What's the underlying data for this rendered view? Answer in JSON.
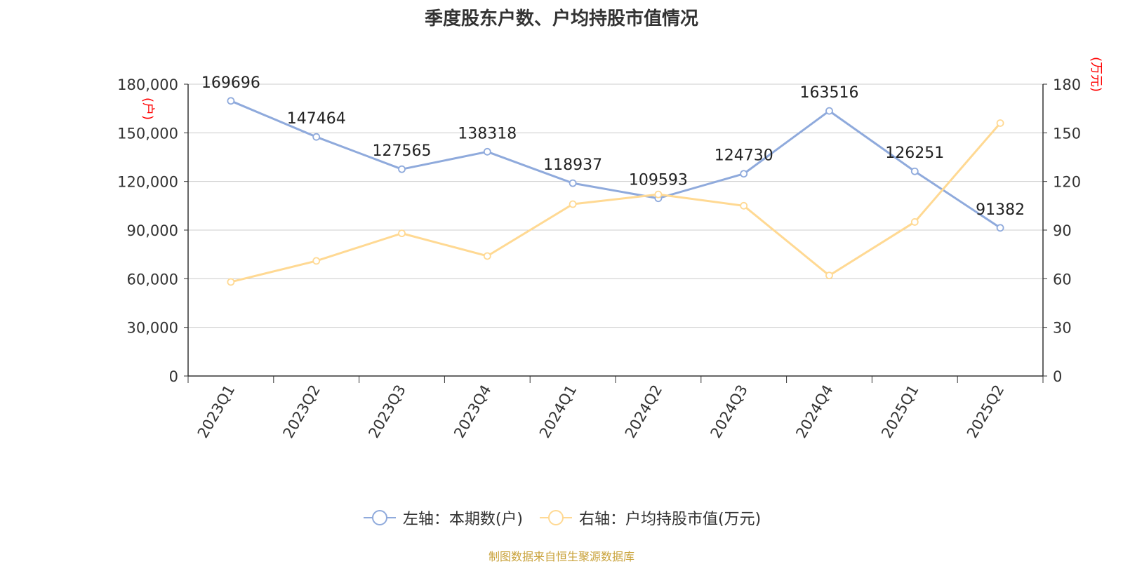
{
  "title": "季度股东户数、户均持股市值情况",
  "source": "制图数据来自恒生聚源数据库",
  "colors": {
    "left_series": "#8faadc",
    "right_series": "#ffd993",
    "unit_label": "#ff0000",
    "axis": "#333333",
    "grid": "#cccccc"
  },
  "chart_data": {
    "type": "line",
    "categories": [
      "2023Q1",
      "2023Q2",
      "2023Q3",
      "2023Q4",
      "2024Q1",
      "2024Q2",
      "2024Q3",
      "2024Q4",
      "2025Q1",
      "2025Q2"
    ],
    "left_axis": {
      "unit": "(户)",
      "ylim": [
        0,
        180000
      ],
      "ticks": [
        0,
        30000,
        60000,
        90000,
        120000,
        150000,
        180000
      ],
      "tick_labels": [
        "0",
        "30,000",
        "60,000",
        "90,000",
        "120,000",
        "150,000",
        "180,000"
      ]
    },
    "right_axis": {
      "unit": "(万元)",
      "ylim": [
        0,
        180
      ],
      "ticks": [
        0,
        30,
        60,
        90,
        120,
        150,
        180
      ],
      "tick_labels": [
        "0",
        "30",
        "60",
        "90",
        "120",
        "150",
        "180"
      ]
    },
    "grid": true,
    "legend_position": "bottom",
    "series": [
      {
        "name": "左轴：本期数(户)",
        "axis": "left",
        "values": [
          169696,
          147464,
          127565,
          138318,
          118937,
          109593,
          124730,
          163516,
          126251,
          91382
        ],
        "data_labels": [
          "169696",
          "147464",
          "127565",
          "138318",
          "118937",
          "109593",
          "124730",
          "163516",
          "126251",
          "91382"
        ]
      },
      {
        "name": "右轴：户均持股市值(万元)",
        "axis": "right",
        "values": [
          58,
          71,
          88,
          74,
          106,
          112,
          105,
          62,
          95,
          156
        ]
      }
    ]
  }
}
